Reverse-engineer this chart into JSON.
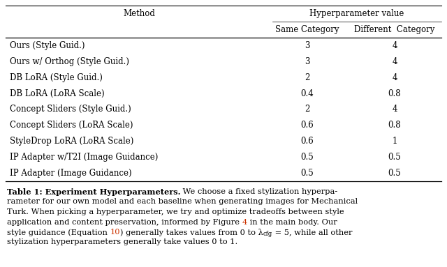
{
  "col_headers": [
    "Method",
    "Same Category",
    "Different Category"
  ],
  "group_header": "Hyperparameter value",
  "rows": [
    [
      "Ours (Style Guid.)",
      "3",
      "4"
    ],
    [
      "Ours w/ Orthog (Style Guid.)",
      "3",
      "4"
    ],
    [
      "DB LoRA (Style Guid.)",
      "2",
      "4"
    ],
    [
      "DB LoRA (LoRA Scale)",
      "0.4",
      "0.8"
    ],
    [
      "Concept Sliders (Style Guid.)",
      "2",
      "4"
    ],
    [
      "Concept Sliders (LoRA Scale)",
      "0.6",
      "0.8"
    ],
    [
      "StyleDrop LoRA (LoRA Scale)",
      "0.6",
      "1"
    ],
    [
      "IP Adapter w/T2I (Image Guidance)",
      "0.5",
      "0.5"
    ],
    [
      "IP Adapter (Image Guidance)",
      "0.5",
      "0.5"
    ]
  ],
  "bg_color": "#ffffff",
  "text_color": "#000000",
  "ref_color": "#cc3300",
  "table_font_size": 8.5,
  "caption_font_size": 8.2,
  "serif": "DejaVu Serif",
  "caption_lines": [
    [
      {
        "text": "Table 1: Experiment Hyperparameters.",
        "bold": true,
        "color": "#000000"
      },
      {
        "text": " We choose a fixed stylization hyperpa-",
        "bold": false,
        "color": "#000000"
      }
    ],
    [
      {
        "text": "rameter for our own model and each baseline when generating images for Mechanical",
        "bold": false,
        "color": "#000000"
      }
    ],
    [
      {
        "text": "Turk. When picking a hyperparameter, we try and optimize tradeoffs between style",
        "bold": false,
        "color": "#000000"
      }
    ],
    [
      {
        "text": "application and content preservation, informed by Figure ",
        "bold": false,
        "color": "#000000"
      },
      {
        "text": "4",
        "bold": false,
        "color": "#cc3300"
      },
      {
        "text": " in the main body. Our",
        "bold": false,
        "color": "#000000"
      }
    ],
    [
      {
        "text": "style guidance (Equation ",
        "bold": false,
        "color": "#000000"
      },
      {
        "text": "10",
        "bold": false,
        "color": "#cc3300"
      },
      {
        "text": ") generally takes values from 0 to λ",
        "bold": false,
        "color": "#000000"
      },
      {
        "text": "cfg",
        "bold": false,
        "color": "#000000",
        "subscript": true
      },
      {
        "text": " = 5, while all other",
        "bold": false,
        "color": "#000000"
      }
    ],
    [
      {
        "text": "stylization hyperparameters generally take values 0 to 1.",
        "bold": false,
        "color": "#000000"
      }
    ]
  ]
}
